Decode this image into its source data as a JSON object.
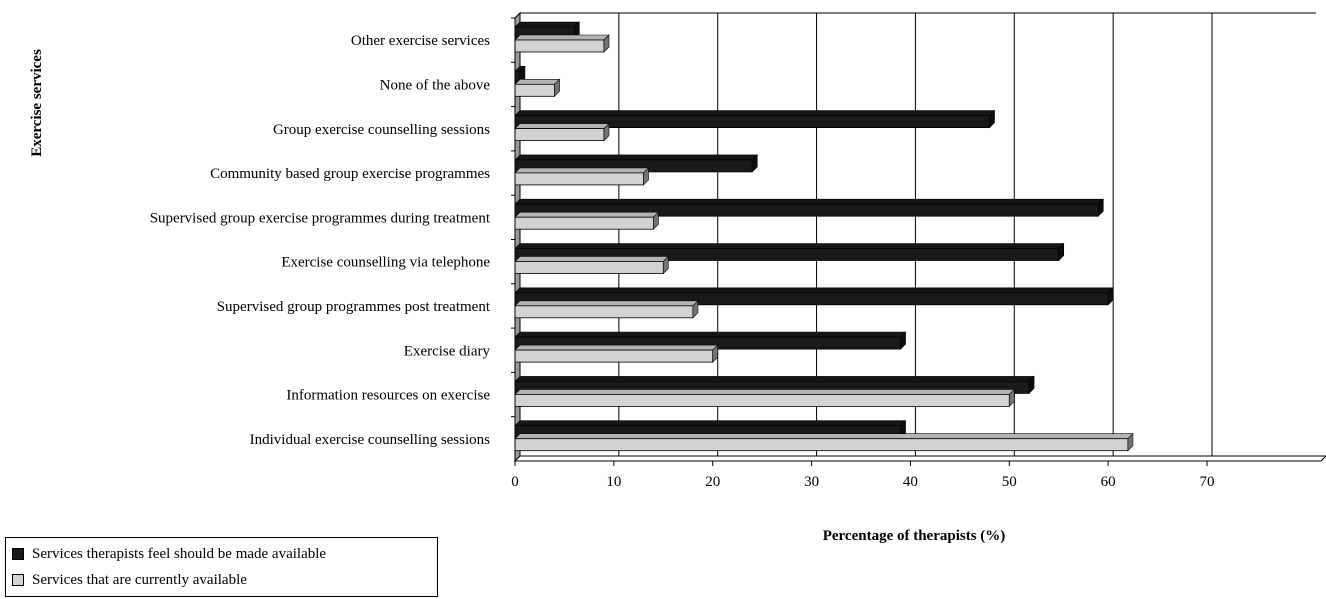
{
  "chart_data": {
    "type": "bar",
    "orientation": "horizontal",
    "categories": [
      "Individual exercise counselling sessions",
      "Information resources on exercise",
      "Exercise diary",
      "Supervised group programmes post treatment",
      "Exercise counselling via telephone",
      "Supervised group exercise programmes during treatment",
      "Community based group exercise programmes",
      "Group exercise counselling sessions",
      "None of the above",
      "Other exercise services"
    ],
    "series": [
      {
        "name": "Services therapists feel should be made available",
        "color": "#1a1a1a",
        "values": [
          39,
          52,
          39,
          60,
          55,
          59,
          24,
          48,
          0.5,
          6
        ]
      },
      {
        "name": "Services that are currently available",
        "color": "#d3d3d3",
        "values": [
          62,
          50,
          20,
          18,
          15,
          14,
          13,
          9,
          4,
          9
        ]
      }
    ],
    "xlabel": "Percentage of therapists (%)",
    "ylabel": "Exercise services",
    "xlim": [
      0,
      70
    ],
    "xticks": [
      0,
      10,
      20,
      30,
      40,
      50,
      60,
      70
    ],
    "grid": true,
    "legend_position": "bottom-left"
  }
}
